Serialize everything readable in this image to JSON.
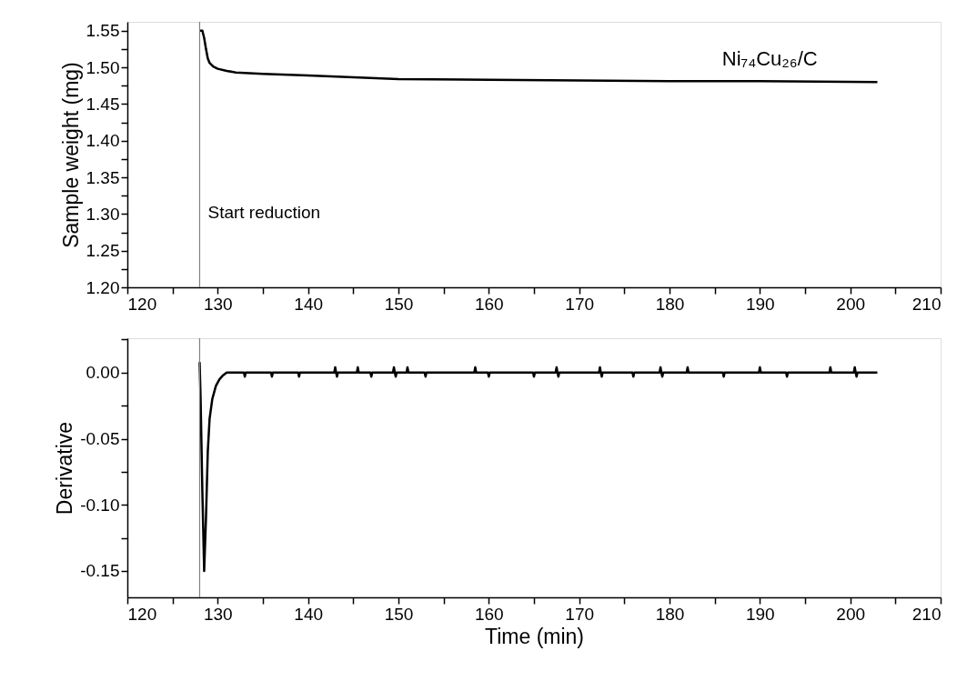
{
  "chart_data": [
    {
      "type": "line",
      "ylabel": "Sample weight (mg)",
      "x": [
        128.0,
        128.3,
        128.5,
        128.7,
        128.9,
        129.1,
        129.5,
        130,
        131,
        132,
        135,
        140,
        150,
        160,
        170,
        180,
        190,
        203
      ],
      "series": [
        {
          "color": "#000000",
          "values": [
            1.55,
            1.55,
            1.54,
            1.525,
            1.512,
            1.506,
            1.501,
            1.498,
            1.495,
            1.493,
            1.491,
            1.489,
            1.484,
            1.483,
            1.482,
            1.481,
            1.481,
            1.48
          ]
        }
      ],
      "xlim": [
        120,
        210
      ],
      "xticks": [
        120,
        {
          "value": 125,
          "label": null
        },
        130,
        {
          "value": 135,
          "label": null
        },
        140,
        {
          "value": 145,
          "label": null
        },
        150,
        {
          "value": 155,
          "label": null
        },
        160,
        {
          "value": 165,
          "label": null
        },
        170,
        {
          "value": 175,
          "label": null
        },
        180,
        {
          "value": 185,
          "label": null
        },
        190,
        {
          "value": 195,
          "label": null
        },
        200,
        {
          "value": 205,
          "label": null
        },
        210
      ],
      "ylim": [
        1.2,
        1.562
      ],
      "yticks": [
        {
          "value": 1.2,
          "label": "1.20"
        },
        {
          "value": 1.225,
          "label": null
        },
        {
          "value": 1.25,
          "label": "1.25"
        },
        {
          "value": 1.275,
          "label": null
        },
        {
          "value": 1.3,
          "label": "1.30"
        },
        {
          "value": 1.325,
          "label": null
        },
        {
          "value": 1.35,
          "label": "1.35"
        },
        {
          "value": 1.375,
          "label": null
        },
        {
          "value": 1.4,
          "label": "1.40"
        },
        {
          "value": 1.425,
          "label": null
        },
        {
          "value": 1.45,
          "label": "1.45"
        },
        {
          "value": 1.475,
          "label": null
        },
        {
          "value": 1.5,
          "label": "1.50"
        },
        {
          "value": 1.525,
          "label": null
        },
        {
          "value": 1.55,
          "label": "1.55"
        }
      ],
      "ref_lines": [
        {
          "axis": "x",
          "value": 128,
          "label": "Start reduction",
          "color": "#808080"
        }
      ],
      "annotations": [
        "Ni₇₄Cu₂₆/C"
      ],
      "grid": false
    },
    {
      "type": "line",
      "xlabel": "Time (min)",
      "ylabel": "Derivative",
      "x": [
        128.0,
        128.1,
        128.3,
        128.5,
        128.7,
        128.9,
        129.1,
        129.4,
        129.8,
        130.2,
        130.6,
        131,
        132.9,
        133,
        133.1,
        135.9,
        136,
        136.1,
        138.9,
        139,
        139.1,
        142.9,
        143,
        143.1,
        143.2,
        143.3,
        145.4,
        145.5,
        145.6,
        146.9,
        147,
        147.1,
        149.4,
        149.5,
        149.6,
        149.7,
        149.8,
        150.9,
        151,
        151.1,
        152.9,
        153,
        153.1,
        158.4,
        158.5,
        158.6,
        159.9,
        160,
        160.1,
        164.9,
        165,
        165.1,
        167.4,
        167.5,
        167.6,
        167.7,
        167.8,
        172.2,
        172.3,
        172.4,
        172.5,
        172.6,
        175.9,
        176,
        176.1,
        178.9,
        179,
        179.1,
        179.2,
        179.3,
        181.9,
        182,
        182.1,
        185.9,
        186,
        186.1,
        189.9,
        190,
        190.1,
        192.9,
        193,
        193.1,
        197.7,
        197.8,
        197.9,
        200.4,
        200.5,
        200.6,
        200.7,
        200.8,
        203
      ],
      "series": [
        {
          "color": "#000000",
          "values": [
            0.008,
            -0.018,
            -0.09,
            -0.15,
            -0.11,
            -0.06,
            -0.035,
            -0.02,
            -0.01,
            -0.005,
            -0.002,
            0,
            0,
            -0.003,
            0,
            0,
            -0.003,
            0,
            0,
            -0.003,
            0,
            0,
            0.004,
            0,
            -0.003,
            0,
            0,
            0.004,
            0,
            0,
            -0.003,
            0,
            0,
            0.004,
            0,
            -0.003,
            0,
            0,
            0.004,
            0,
            0,
            -0.003,
            0,
            0,
            0.004,
            0,
            0,
            -0.003,
            0,
            0,
            -0.003,
            0,
            0,
            0.004,
            0,
            -0.003,
            0,
            0,
            0.004,
            0,
            -0.003,
            0,
            0,
            -0.003,
            0,
            0,
            0.004,
            0,
            -0.003,
            0,
            0,
            0.004,
            0,
            0,
            -0.003,
            0,
            0,
            0.004,
            0,
            0,
            -0.003,
            0,
            0,
            0.004,
            0,
            0,
            0.004,
            0,
            -0.003,
            0,
            0
          ]
        }
      ],
      "xlim": [
        120,
        210
      ],
      "xticks": [
        120,
        {
          "value": 125,
          "label": null
        },
        130,
        {
          "value": 135,
          "label": null
        },
        140,
        {
          "value": 145,
          "label": null
        },
        150,
        {
          "value": 155,
          "label": null
        },
        160,
        {
          "value": 165,
          "label": null
        },
        170,
        {
          "value": 175,
          "label": null
        },
        180,
        {
          "value": 185,
          "label": null
        },
        190,
        {
          "value": 195,
          "label": null
        },
        200,
        {
          "value": 205,
          "label": null
        },
        210
      ],
      "ylim": [
        -0.17,
        0.026
      ],
      "yticks": [
        {
          "value": -0.15,
          "label": "-0.15"
        },
        {
          "value": -0.125,
          "label": null
        },
        {
          "value": -0.1,
          "label": "-0.10"
        },
        {
          "value": -0.075,
          "label": null
        },
        {
          "value": -0.05,
          "label": "-0.05"
        },
        {
          "value": -0.025,
          "label": null
        },
        {
          "value": 0,
          "label": "0.00"
        },
        {
          "value": 0.025,
          "label": null
        }
      ],
      "ref_lines": [
        {
          "axis": "x",
          "value": 128,
          "color": "#808080"
        }
      ],
      "grid": false
    }
  ]
}
